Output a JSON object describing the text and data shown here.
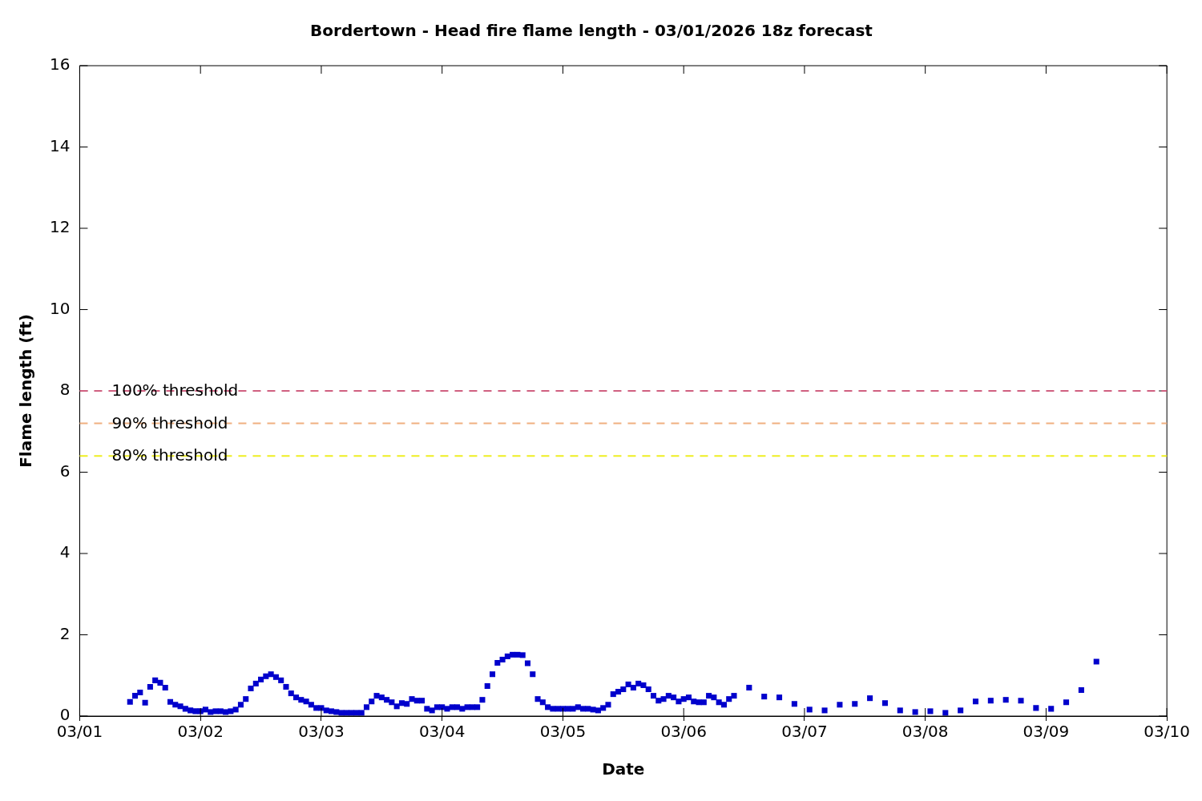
{
  "chart_data": {
    "type": "scatter",
    "title": "Bordertown - Head fire flame length - 03/01/2026 18z forecast",
    "xlabel": "Date",
    "ylabel": "Flame length (ft)",
    "x": [
      "2026-03-01T10:00",
      "2026-03-01T11:00",
      "2026-03-01T12:00",
      "2026-03-01T13:00",
      "2026-03-01T14:00",
      "2026-03-01T15:00",
      "2026-03-01T16:00",
      "2026-03-01T17:00",
      "2026-03-01T18:00",
      "2026-03-01T19:00",
      "2026-03-01T20:00",
      "2026-03-01T21:00",
      "2026-03-01T22:00",
      "2026-03-01T23:00",
      "2026-03-02T00:00",
      "2026-03-02T01:00",
      "2026-03-02T02:00",
      "2026-03-02T03:00",
      "2026-03-02T04:00",
      "2026-03-02T05:00",
      "2026-03-02T06:00",
      "2026-03-02T07:00",
      "2026-03-02T08:00",
      "2026-03-02T09:00",
      "2026-03-02T10:00",
      "2026-03-02T11:00",
      "2026-03-02T12:00",
      "2026-03-02T13:00",
      "2026-03-02T14:00",
      "2026-03-02T15:00",
      "2026-03-02T16:00",
      "2026-03-02T17:00",
      "2026-03-02T18:00",
      "2026-03-02T19:00",
      "2026-03-02T20:00",
      "2026-03-02T21:00",
      "2026-03-02T22:00",
      "2026-03-02T23:00",
      "2026-03-03T00:00",
      "2026-03-03T01:00",
      "2026-03-03T02:00",
      "2026-03-03T03:00",
      "2026-03-03T04:00",
      "2026-03-03T05:00",
      "2026-03-03T06:00",
      "2026-03-03T07:00",
      "2026-03-03T08:00",
      "2026-03-03T09:00",
      "2026-03-03T10:00",
      "2026-03-03T11:00",
      "2026-03-03T12:00",
      "2026-03-03T13:00",
      "2026-03-03T14:00",
      "2026-03-03T15:00",
      "2026-03-03T16:00",
      "2026-03-03T17:00",
      "2026-03-03T18:00",
      "2026-03-03T19:00",
      "2026-03-03T20:00",
      "2026-03-03T21:00",
      "2026-03-03T22:00",
      "2026-03-03T23:00",
      "2026-03-04T00:00",
      "2026-03-04T01:00",
      "2026-03-04T02:00",
      "2026-03-04T03:00",
      "2026-03-04T04:00",
      "2026-03-04T05:00",
      "2026-03-04T06:00",
      "2026-03-04T07:00",
      "2026-03-04T08:00",
      "2026-03-04T09:00",
      "2026-03-04T10:00",
      "2026-03-04T11:00",
      "2026-03-04T12:00",
      "2026-03-04T13:00",
      "2026-03-04T14:00",
      "2026-03-04T15:00",
      "2026-03-04T16:00",
      "2026-03-04T17:00",
      "2026-03-04T18:00",
      "2026-03-04T19:00",
      "2026-03-04T20:00",
      "2026-03-04T21:00",
      "2026-03-04T22:00",
      "2026-03-04T23:00",
      "2026-03-05T00:00",
      "2026-03-05T01:00",
      "2026-03-05T02:00",
      "2026-03-05T03:00",
      "2026-03-05T04:00",
      "2026-03-05T05:00",
      "2026-03-05T06:00",
      "2026-03-05T07:00",
      "2026-03-05T08:00",
      "2026-03-05T09:00",
      "2026-03-05T10:00",
      "2026-03-05T11:00",
      "2026-03-05T12:00",
      "2026-03-05T13:00",
      "2026-03-05T14:00",
      "2026-03-05T15:00",
      "2026-03-05T16:00",
      "2026-03-05T17:00",
      "2026-03-05T18:00",
      "2026-03-05T19:00",
      "2026-03-05T20:00",
      "2026-03-05T21:00",
      "2026-03-05T22:00",
      "2026-03-05T23:00",
      "2026-03-06T00:00",
      "2026-03-06T01:00",
      "2026-03-06T02:00",
      "2026-03-06T03:00",
      "2026-03-06T04:00",
      "2026-03-06T05:00",
      "2026-03-06T06:00",
      "2026-03-06T07:00",
      "2026-03-06T08:00",
      "2026-03-06T09:00",
      "2026-03-06T10:00",
      "2026-03-06T13:00",
      "2026-03-06T16:00",
      "2026-03-06T19:00",
      "2026-03-06T22:00",
      "2026-03-07T01:00",
      "2026-03-07T04:00",
      "2026-03-07T07:00",
      "2026-03-07T10:00",
      "2026-03-07T13:00",
      "2026-03-07T16:00",
      "2026-03-07T19:00",
      "2026-03-07T22:00",
      "2026-03-08T01:00",
      "2026-03-08T04:00",
      "2026-03-08T07:00",
      "2026-03-08T10:00",
      "2026-03-08T13:00",
      "2026-03-08T16:00",
      "2026-03-08T19:00",
      "2026-03-08T22:00",
      "2026-03-09T01:00",
      "2026-03-09T04:00",
      "2026-03-09T07:00",
      "2026-03-09T10:00"
    ],
    "series": [
      {
        "color": "#0000cc",
        "values": [
          0.35,
          0.5,
          0.58,
          0.33,
          0.72,
          0.88,
          0.82,
          0.7,
          0.35,
          0.28,
          0.24,
          0.18,
          0.14,
          0.12,
          0.12,
          0.16,
          0.1,
          0.12,
          0.12,
          0.1,
          0.12,
          0.16,
          0.28,
          0.42,
          0.68,
          0.8,
          0.9,
          0.98,
          1.03,
          0.96,
          0.88,
          0.72,
          0.56,
          0.46,
          0.4,
          0.36,
          0.28,
          0.2,
          0.2,
          0.14,
          0.12,
          0.1,
          0.08,
          0.08,
          0.08,
          0.08,
          0.08,
          0.22,
          0.36,
          0.5,
          0.46,
          0.4,
          0.34,
          0.24,
          0.32,
          0.3,
          0.42,
          0.38,
          0.38,
          0.18,
          0.14,
          0.22,
          0.22,
          0.18,
          0.22,
          0.22,
          0.18,
          0.22,
          0.22,
          0.22,
          0.4,
          0.74,
          1.03,
          1.31,
          1.39,
          1.47,
          1.51,
          1.51,
          1.5,
          1.3,
          1.03,
          0.42,
          0.34,
          0.22,
          0.18,
          0.18,
          0.18,
          0.18,
          0.18,
          0.22,
          0.18,
          0.18,
          0.16,
          0.14,
          0.2,
          0.28,
          0.54,
          0.6,
          0.66,
          0.78,
          0.7,
          0.8,
          0.76,
          0.66,
          0.5,
          0.38,
          0.42,
          0.5,
          0.46,
          0.36,
          0.42,
          0.46,
          0.36,
          0.34,
          0.34,
          0.5,
          0.46,
          0.34,
          0.28,
          0.42,
          0.5,
          0.7,
          0.48,
          0.46,
          0.3,
          0.16,
          0.14,
          0.28,
          0.3,
          0.44,
          0.32,
          0.14,
          0.1,
          0.12,
          0.08,
          0.14,
          0.36,
          0.38,
          0.4,
          0.38,
          0.2,
          0.18,
          0.34,
          0.64,
          1.34
        ]
      }
    ],
    "marker": "square",
    "xlim": [
      "2026-03-01",
      "2026-03-10"
    ],
    "xticks": [
      {
        "value": "2026-03-01",
        "label": "03/01"
      },
      {
        "value": "2026-03-02",
        "label": "03/02"
      },
      {
        "value": "2026-03-03",
        "label": "03/03"
      },
      {
        "value": "2026-03-04",
        "label": "03/04"
      },
      {
        "value": "2026-03-05",
        "label": "03/05"
      },
      {
        "value": "2026-03-06",
        "label": "03/06"
      },
      {
        "value": "2026-03-07",
        "label": "03/07"
      },
      {
        "value": "2026-03-08",
        "label": "03/08"
      },
      {
        "value": "2026-03-09",
        "label": "03/09"
      },
      {
        "value": "2026-03-10",
        "label": "03/10"
      }
    ],
    "ylim": [
      0,
      16
    ],
    "yticks": [
      0,
      2,
      4,
      6,
      8,
      10,
      12,
      14,
      16
    ],
    "ref_lines": [
      {
        "axis": "y",
        "value": 8,
        "label": "100% threshold",
        "color": "#d06080",
        "line_style": "dashed"
      },
      {
        "axis": "y",
        "value": 7.2,
        "label": "90% threshold",
        "color": "#f0b080",
        "line_style": "dashed"
      },
      {
        "axis": "y",
        "value": 6.4,
        "label": "80% threshold",
        "color": "#eeee22",
        "line_style": "dashed"
      }
    ],
    "grid": false,
    "legend": false
  }
}
